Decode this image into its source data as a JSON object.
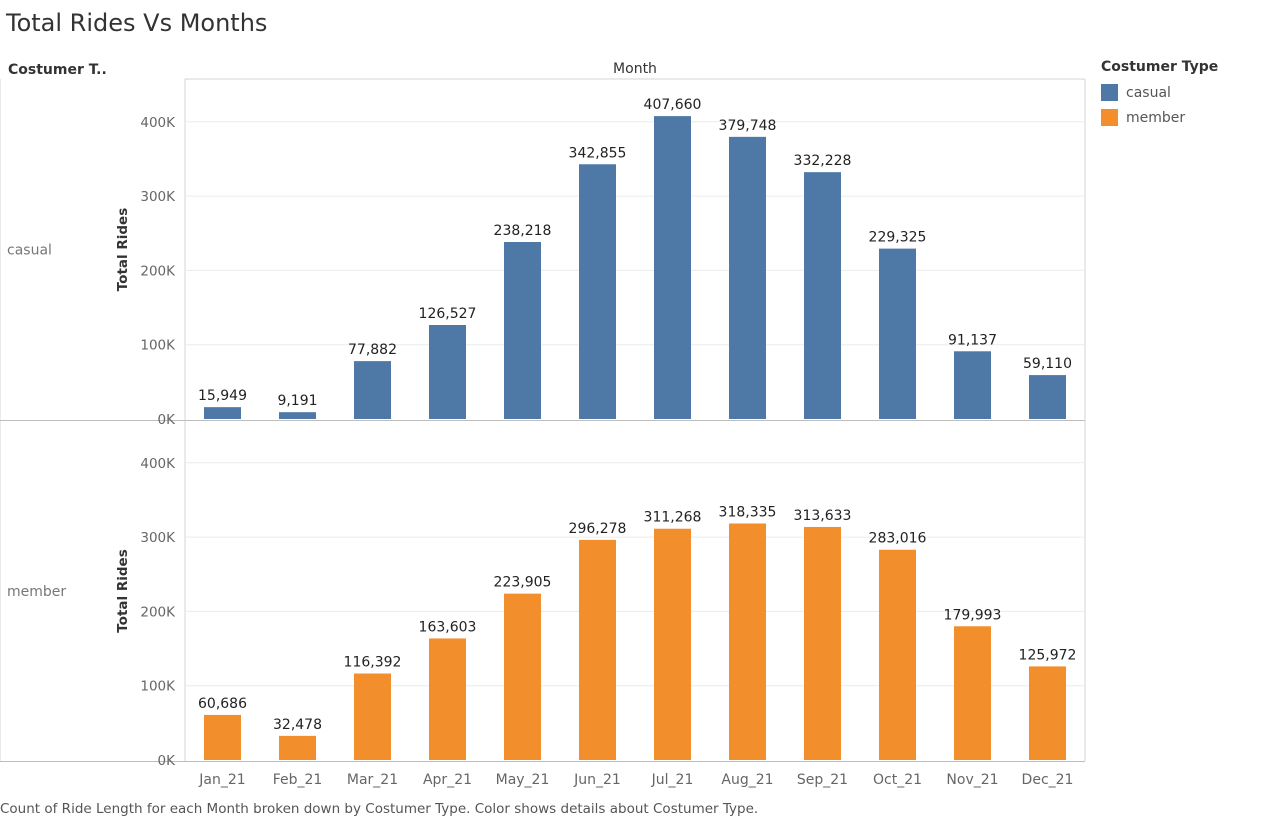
{
  "title": "Total Rides Vs Months",
  "row_header": "Costumer T..",
  "column_header": "Month",
  "legend": {
    "title": "Costumer Type",
    "items": [
      {
        "label": "casual",
        "color": "#4e79a7"
      },
      {
        "label": "member",
        "color": "#f28e2b"
      }
    ]
  },
  "caption": "Count of Ride Length for each Month broken down by Costumer Type.  Color shows details about Costumer Type.",
  "chart_data": {
    "type": "bar",
    "categories": [
      "Jan_21",
      "Feb_21",
      "Mar_21",
      "Apr_21",
      "May_21",
      "Jun_21",
      "Jul_21",
      "Aug_21",
      "Sep_21",
      "Oct_21",
      "Nov_21",
      "Dec_21"
    ],
    "xlabel": "Month",
    "ylabel": "Total Rides",
    "y_ticks": [
      "0K",
      "100K",
      "200K",
      "300K",
      "400K"
    ],
    "ylim": [
      0,
      450000
    ],
    "grid": true,
    "legend_position": "top-right",
    "series": [
      {
        "name": "casual",
        "color": "#4e79a7",
        "values": [
          15949,
          9191,
          77882,
          126527,
          238218,
          342855,
          407660,
          379748,
          332228,
          229325,
          91137,
          59110
        ],
        "labels": [
          "15,949",
          "9,191",
          "77,882",
          "126,527",
          "238,218",
          "342,855",
          "407,660",
          "379,748",
          "332,228",
          "229,325",
          "91,137",
          "59,110"
        ]
      },
      {
        "name": "member",
        "color": "#f28e2b",
        "values": [
          60686,
          32478,
          116392,
          163603,
          223905,
          296278,
          311268,
          318335,
          313633,
          283016,
          179993,
          125972
        ],
        "labels": [
          "60,686",
          "32,478",
          "116,392",
          "163,603",
          "223,905",
          "296,278",
          "311,268",
          "318,335",
          "313,633",
          "283,016",
          "179,993",
          "125,972"
        ]
      }
    ]
  }
}
